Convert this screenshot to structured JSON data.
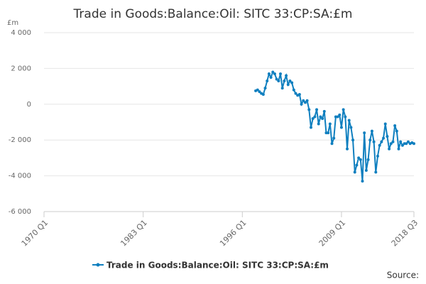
{
  "chart_data": {
    "type": "line",
    "title": "Trade in Goods:Balance:Oil: SITC 33:CP:SA:£m",
    "y_unit": "£m",
    "source": "Source:",
    "x": [
      1997.75,
      1998,
      1998.25,
      1998.5,
      1998.75,
      1999,
      1999.25,
      1999.5,
      1999.75,
      2000,
      2000.25,
      2000.5,
      2000.75,
      2001,
      2001.25,
      2001.5,
      2001.75,
      2002,
      2002.25,
      2002.5,
      2002.75,
      2003,
      2003.25,
      2003.5,
      2003.75,
      2004,
      2004.25,
      2004.5,
      2004.75,
      2005,
      2005.25,
      2005.5,
      2005.75,
      2006,
      2006.25,
      2006.5,
      2006.75,
      2007,
      2007.25,
      2007.5,
      2007.75,
      2008,
      2008.25,
      2008.5,
      2008.75,
      2009,
      2009.25,
      2009.5,
      2009.75,
      2010,
      2010.25,
      2010.5,
      2010.75,
      2011,
      2011.25,
      2011.5,
      2011.75,
      2012,
      2012.25,
      2012.5,
      2012.75,
      2013,
      2013.25,
      2013.5,
      2013.75,
      2014,
      2014.25,
      2014.5,
      2014.75,
      2015,
      2015.25,
      2015.5,
      2015.75,
      2016,
      2016.25,
      2016.5,
      2016.75,
      2017,
      2017.25,
      2017.5,
      2017.75,
      2018,
      2018.25,
      2018.5
    ],
    "series": [
      {
        "name": "Trade in Goods:Balance:Oil: SITC 33:CP:SA:£m",
        "color": "#0f7fbf",
        "values": [
          750,
          800,
          700,
          600,
          550,
          900,
          1300,
          1700,
          1500,
          1800,
          1700,
          1400,
          1300,
          1700,
          900,
          1300,
          1600,
          1100,
          1300,
          1200,
          800,
          600,
          500,
          550,
          0,
          200,
          100,
          200,
          -300,
          -1300,
          -800,
          -700,
          -300,
          -1100,
          -700,
          -800,
          -400,
          -1600,
          -1600,
          -1100,
          -2200,
          -1900,
          -700,
          -700,
          -600,
          -1300,
          -300,
          -700,
          -2500,
          -900,
          -1300,
          -2000,
          -3800,
          -3400,
          -3000,
          -3100,
          -4300,
          -1600,
          -3700,
          -3100,
          -2000,
          -1500,
          -2100,
          -3800,
          -2900,
          -2300,
          -2100,
          -1900,
          -1100,
          -1800,
          -2500,
          -2200,
          -2100,
          -1200,
          -1500,
          -2500,
          -2100,
          -2300,
          -2200,
          -2200,
          -2100,
          -2200,
          -2150,
          -2200
        ]
      }
    ],
    "xlim": [
      1970,
      2018.5
    ],
    "xticks": [
      {
        "value": 1970,
        "label": "1970 Q1"
      },
      {
        "value": 1983,
        "label": "1983 Q1"
      },
      {
        "value": 1996,
        "label": "1996 Q1"
      },
      {
        "value": 2009,
        "label": "2009 Q1"
      },
      {
        "value": 2018.5,
        "label": "2018 Q3"
      }
    ],
    "ylim": [
      -6000,
      4000
    ],
    "yticks": [
      {
        "value": -6000,
        "label": "-6 000"
      },
      {
        "value": -4000,
        "label": "-4 000"
      },
      {
        "value": -2000,
        "label": "-2 000"
      },
      0,
      {
        "value": 2000,
        "label": "2 000"
      },
      {
        "value": 4000,
        "label": "4 000"
      }
    ],
    "grid": true
  }
}
